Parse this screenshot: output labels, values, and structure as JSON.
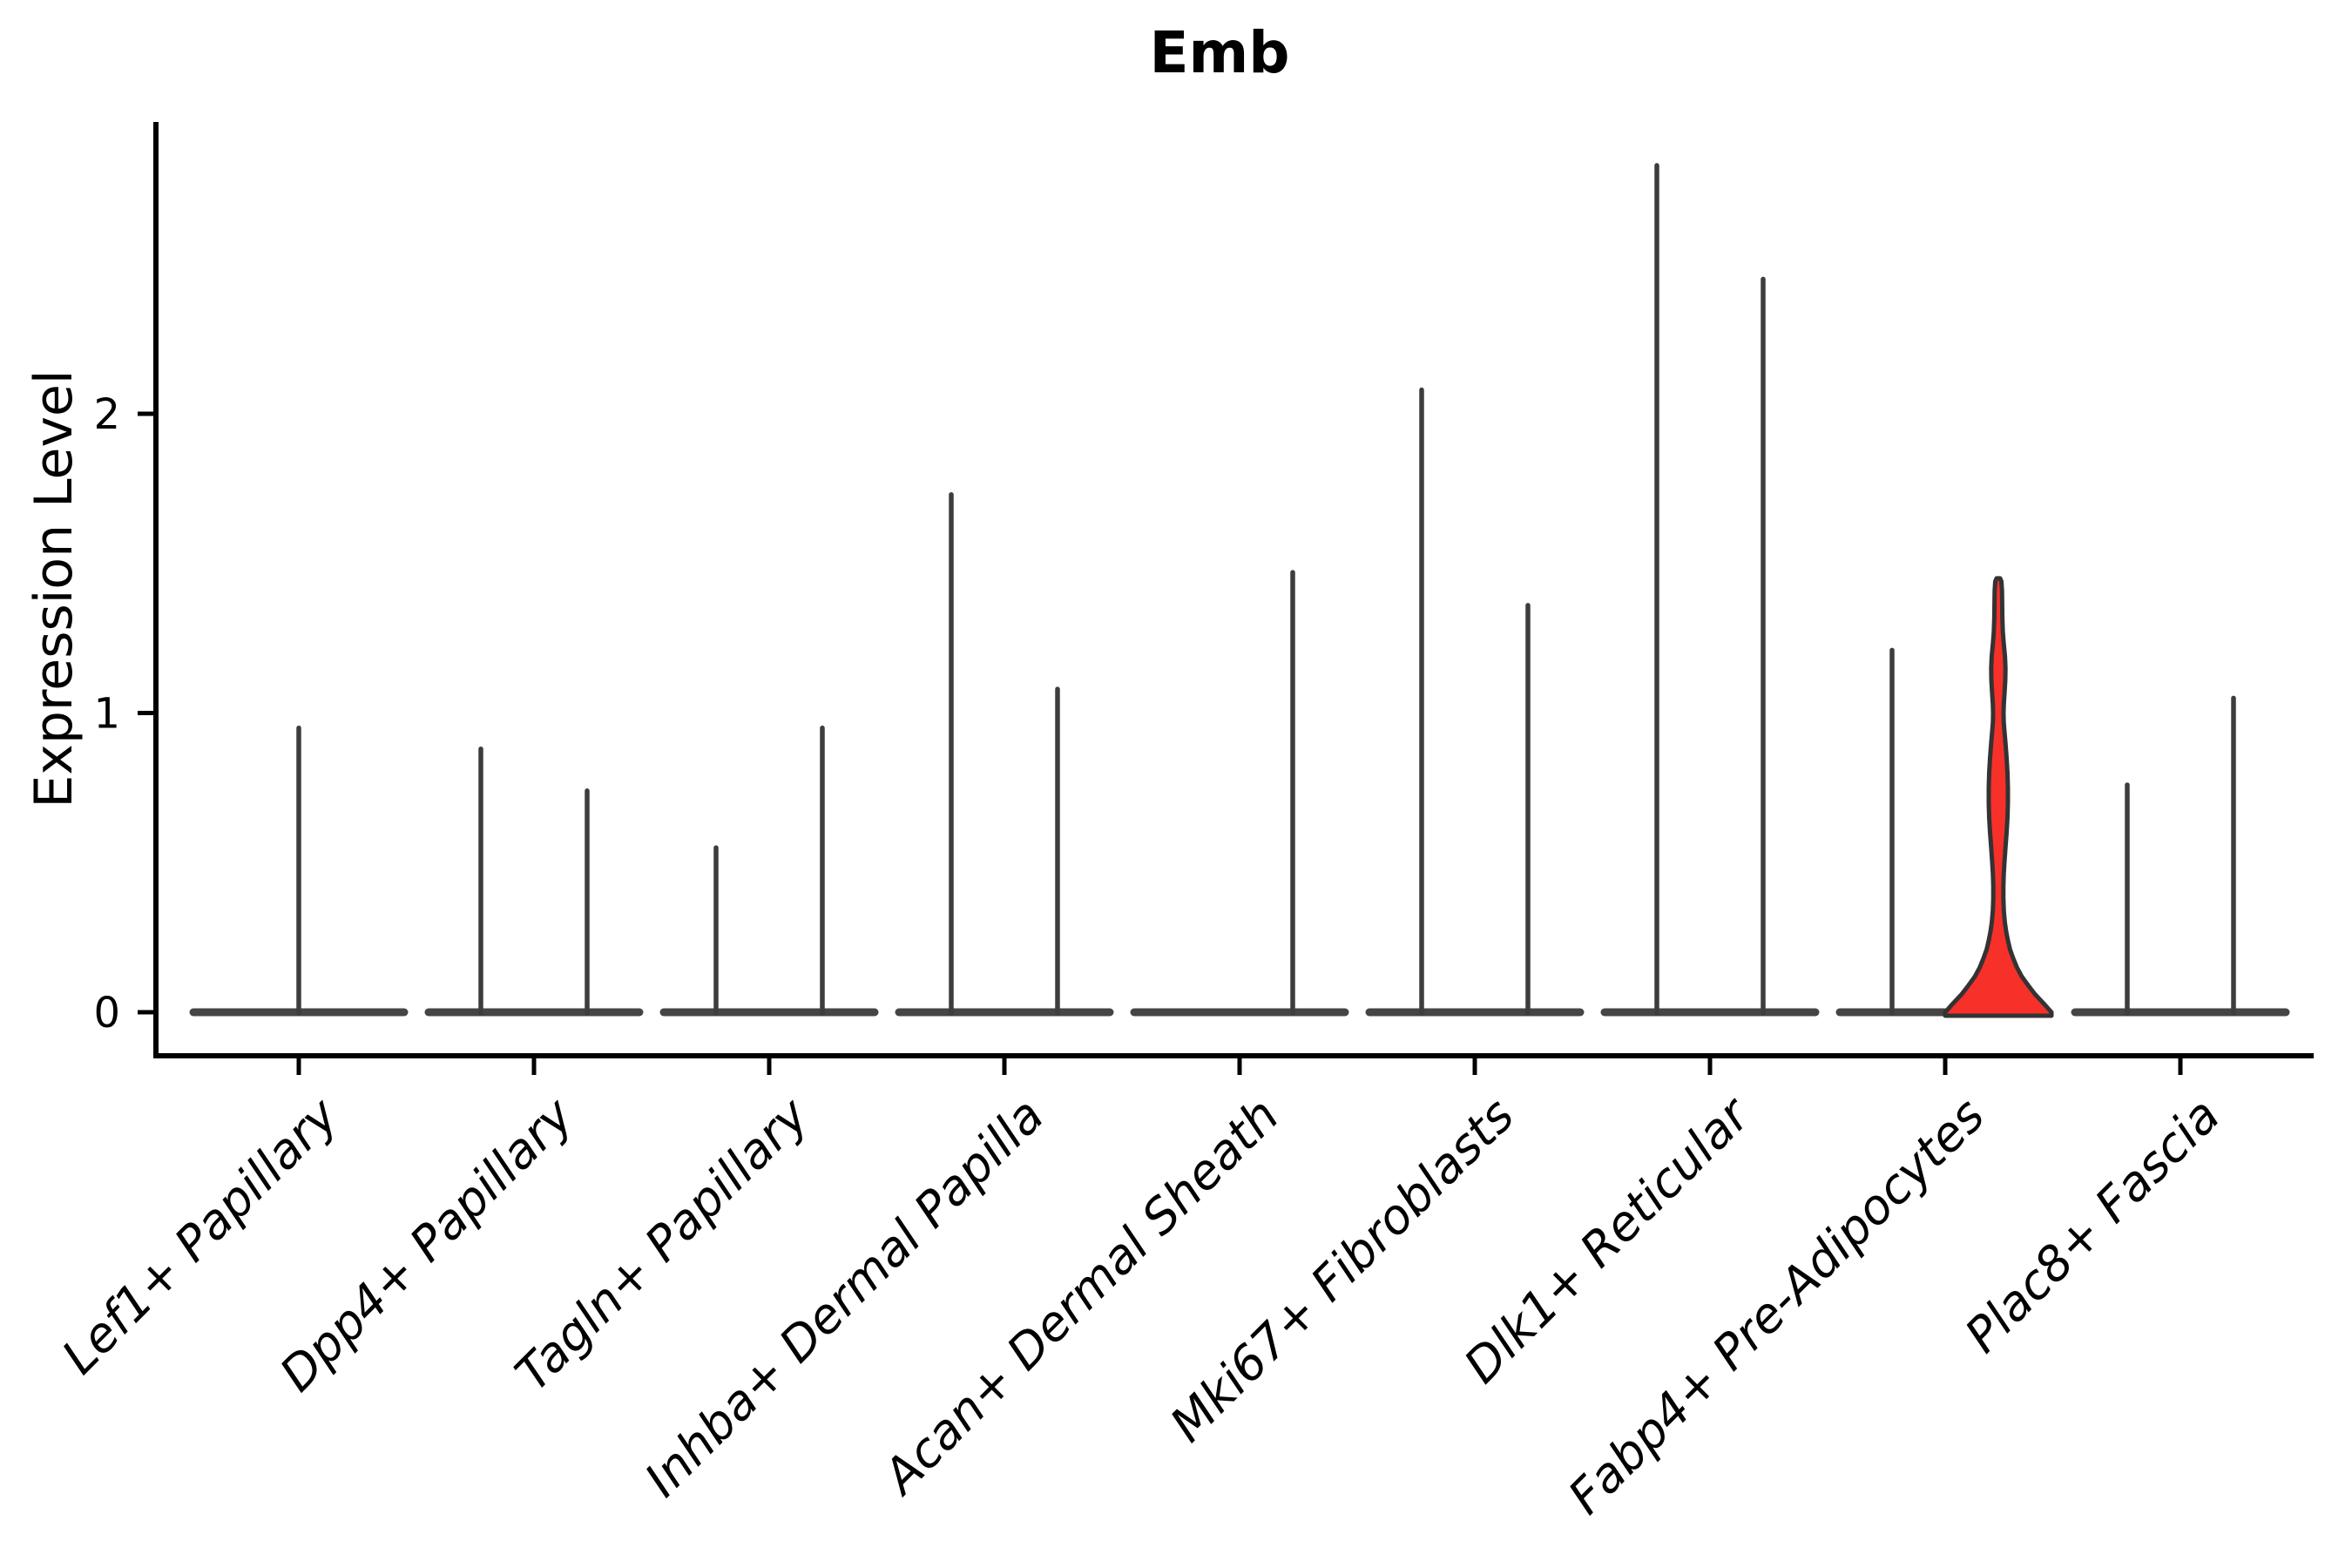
{
  "title": "Emb",
  "ylabel": "Expression Level",
  "chart_data": {
    "type": "violin",
    "title": "Emb",
    "ylabel": "Expression Level",
    "yticks": [
      0,
      1,
      2
    ],
    "ylim": [
      -0.15,
      2.98
    ],
    "grid": false,
    "legend": "none",
    "categories": [
      "Lef1+ Papillary",
      "Dpp4+ Papillary",
      "Tagln+ Papillary",
      "Inhba+ Dermal Papilla",
      "Acan+ Dermal Sheath",
      "Mki67+ Fibroblasts",
      "Dlk1+ Reticular",
      "Fabp4+ Pre-Adipocytes",
      "Plac8+ Fascia"
    ],
    "violins": [
      {
        "category": "Lef1+ Papillary",
        "parts": [
          {
            "offset": 0,
            "max": 0.95,
            "style": "spike"
          }
        ]
      },
      {
        "category": "Dpp4+ Papillary",
        "parts": [
          {
            "offset": -1,
            "max": 0.88,
            "style": "spike"
          },
          {
            "offset": 1,
            "max": 0.74,
            "style": "spike"
          }
        ]
      },
      {
        "category": "Tagln+ Papillary",
        "parts": [
          {
            "offset": -1,
            "max": 0.55,
            "style": "spike"
          },
          {
            "offset": 1,
            "max": 0.95,
            "style": "spike"
          }
        ]
      },
      {
        "category": "Inhba+ Dermal Papilla",
        "parts": [
          {
            "offset": -1,
            "max": 1.73,
            "style": "spike"
          },
          {
            "offset": 1,
            "max": 1.08,
            "style": "spike"
          }
        ]
      },
      {
        "category": "Acan+ Dermal Sheath",
        "parts": [
          {
            "offset": 1,
            "max": 1.47,
            "style": "spike"
          }
        ]
      },
      {
        "category": "Mki67+ Fibroblasts",
        "parts": [
          {
            "offset": -1,
            "max": 2.08,
            "style": "spike"
          },
          {
            "offset": 1,
            "max": 1.36,
            "style": "spike"
          }
        ]
      },
      {
        "category": "Dlk1+ Reticular",
        "parts": [
          {
            "offset": -1,
            "max": 2.83,
            "style": "spike"
          },
          {
            "offset": 1,
            "max": 2.45,
            "style": "spike"
          }
        ]
      },
      {
        "category": "Fabp4+ Pre-Adipocytes",
        "parts": [
          {
            "offset": -1,
            "max": 1.21,
            "style": "spike"
          },
          {
            "offset": 1,
            "max": 1.45,
            "style": "filled",
            "profile": [
              [
                0.0,
                1.0
              ],
              [
                0.03,
                0.85
              ],
              [
                0.06,
                0.69
              ],
              [
                0.09,
                0.56
              ],
              [
                0.12,
                0.44
              ],
              [
                0.15,
                0.35
              ],
              [
                0.18,
                0.28
              ],
              [
                0.21,
                0.22
              ],
              [
                0.24,
                0.18
              ],
              [
                0.27,
                0.148
              ],
              [
                0.3,
                0.123
              ],
              [
                0.34,
                0.103
              ],
              [
                0.38,
                0.095
              ],
              [
                0.42,
                0.095
              ],
              [
                0.46,
                0.102
              ],
              [
                0.5,
                0.115
              ],
              [
                0.55,
                0.134
              ],
              [
                0.6,
                0.156
              ],
              [
                0.65,
                0.172
              ],
              [
                0.7,
                0.18
              ],
              [
                0.75,
                0.18
              ],
              [
                0.8,
                0.172
              ],
              [
                0.85,
                0.156
              ],
              [
                0.9,
                0.134
              ],
              [
                0.94,
                0.115
              ],
              [
                0.97,
                0.102
              ],
              [
                1.0,
                0.098
              ],
              [
                1.03,
                0.103
              ],
              [
                1.07,
                0.118
              ],
              [
                1.11,
                0.131
              ],
              [
                1.15,
                0.134
              ],
              [
                1.19,
                0.125
              ],
              [
                1.23,
                0.103
              ],
              [
                1.27,
                0.085
              ],
              [
                1.32,
                0.075
              ],
              [
                1.37,
                0.072
              ],
              [
                1.41,
                0.069
              ],
              [
                1.44,
                0.057
              ],
              [
                1.45,
                0.033
              ]
            ]
          }
        ]
      },
      {
        "category": "Plac8+ Fascia",
        "parts": [
          {
            "offset": -1,
            "max": 0.76,
            "style": "spike"
          },
          {
            "offset": 1,
            "max": 1.05,
            "style": "spike"
          }
        ]
      }
    ],
    "colors": {
      "axis": "#000000",
      "spike": "#3d3d3d",
      "base": "#454545",
      "violin_outline": "#333333",
      "violin_fill": "#F8302A"
    }
  }
}
